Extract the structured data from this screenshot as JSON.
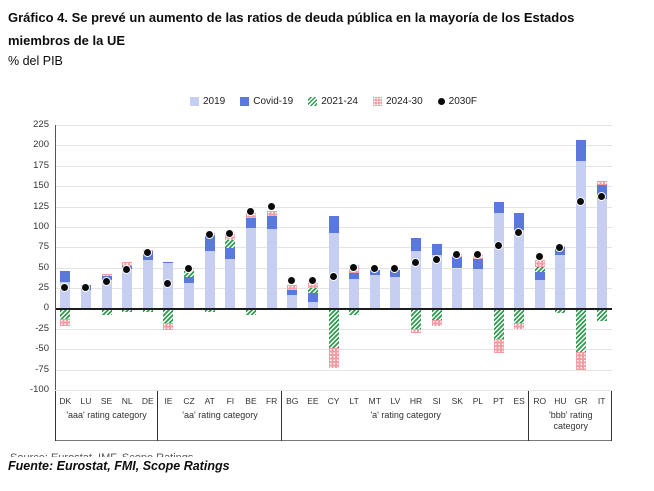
{
  "title_line1": "Gráfico 4. Se prevé un aumento de las ratios de deuda pública en la mayoría de los Estados",
  "title_line2": "miembros de la UE",
  "subtitle": "% del PIB",
  "footer": {
    "clipped_source_line": "Source: Eurostat, IMF, Scope Ratings",
    "fuente": "Fuente: Eurostat, FMI, Scope Ratings"
  },
  "colors": {
    "bar_2019": "#c6cff1",
    "bar_covid": "#5b79dd",
    "hatch_green": "#2f9e4f",
    "hatch_pink": "#f59ba3",
    "dot": "#0a0a0a",
    "gridline": "#e4e4e4",
    "zero_line": "#1c1c1c"
  },
  "chart_data": {
    "type": "bar",
    "stacked": true,
    "title": "Se prevé un aumento de las ratios de deuda pública en la mayoría de los Estados miembros de la UE",
    "ylabel": "% del PIB",
    "ylim": [
      -100,
      225
    ],
    "yticks": [
      225,
      200,
      175,
      150,
      125,
      100,
      75,
      50,
      25,
      0,
      -25,
      -50,
      -75,
      -100
    ],
    "grid": true,
    "legend_position": "top-center",
    "legend": [
      {
        "label": "2019",
        "style": "solid-light-blue"
      },
      {
        "label": "Covid-19",
        "style": "solid-blue"
      },
      {
        "label": "2021-24",
        "style": "green-hatch"
      },
      {
        "label": "2024-30",
        "style": "pink-dotted"
      },
      {
        "label": "2030F",
        "style": "black-dot"
      }
    ],
    "series_note": "Bars stack 2019 level + Covid-19 increase; 2021-24 and 2024-30 changes plot above zero when positive and below zero when negative; black dot marks 2030 forecast level.",
    "groups": [
      {
        "label": "'aaa' rating category",
        "countries": [
          {
            "code": "DK",
            "y2019": 33,
            "covid": 13,
            "chg_2021_24": -13,
            "chg_2024_30": -8,
            "f2030": 25
          },
          {
            "code": "LU",
            "y2019": 23,
            "covid": 6,
            "chg_2021_24": -2,
            "chg_2024_30": 0,
            "f2030": 25
          },
          {
            "code": "SE",
            "y2019": 35,
            "covid": 5,
            "chg_2021_24": -8,
            "chg_2024_30": 2,
            "f2030": 33
          },
          {
            "code": "NL",
            "y2019": 48,
            "covid": 4,
            "chg_2021_24": -4,
            "chg_2024_30": 5,
            "f2030": 47
          },
          {
            "code": "DE",
            "y2019": 59,
            "covid": 11,
            "chg_2021_24": -4,
            "chg_2024_30": 2,
            "f2030": 68
          }
        ]
      },
      {
        "label": "'aa' rating category",
        "countries": [
          {
            "code": "IE",
            "y2019": 56,
            "covid": 1,
            "chg_2021_24": -18,
            "chg_2024_30": -8,
            "f2030": 30
          },
          {
            "code": "CZ",
            "y2019": 31,
            "covid": 7,
            "chg_2021_24": 10,
            "chg_2024_30": 2,
            "f2030": 49
          },
          {
            "code": "AT",
            "y2019": 71,
            "covid": 19,
            "chg_2021_24": -4,
            "chg_2024_30": 3,
            "f2030": 90
          },
          {
            "code": "FI",
            "y2019": 61,
            "covid": 13,
            "chg_2021_24": 10,
            "chg_2024_30": 7,
            "f2030": 91
          },
          {
            "code": "BE",
            "y2019": 99,
            "covid": 12,
            "chg_2021_24": -8,
            "chg_2024_30": 6,
            "f2030": 118
          },
          {
            "code": "FR",
            "y2019": 98,
            "covid": 15,
            "chg_2021_24": -2,
            "chg_2024_30": 6,
            "f2030": 124
          }
        ]
      },
      {
        "label": "'a' rating category",
        "countries": [
          {
            "code": "BG",
            "y2019": 17,
            "covid": 6,
            "chg_2021_24": 0,
            "chg_2024_30": 6,
            "f2030": 34
          },
          {
            "code": "EE",
            "y2019": 8,
            "covid": 11,
            "chg_2021_24": 6,
            "chg_2024_30": 6,
            "f2030": 34
          },
          {
            "code": "CY",
            "y2019": 93,
            "covid": 20,
            "chg_2021_24": -48,
            "chg_2024_30": -25,
            "f2030": 39
          },
          {
            "code": "LT",
            "y2019": 36,
            "covid": 8,
            "chg_2021_24": -8,
            "chg_2024_30": 9,
            "f2030": 50
          },
          {
            "code": "MT",
            "y2019": 41,
            "covid": 6,
            "chg_2021_24": -2,
            "chg_2024_30": 0,
            "f2030": 48
          },
          {
            "code": "LV",
            "y2019": 38,
            "covid": 9,
            "chg_2021_24": -2,
            "chg_2024_30": 0,
            "f2030": 49
          },
          {
            "code": "HR",
            "y2019": 71,
            "covid": 16,
            "chg_2021_24": -25,
            "chg_2024_30": -5,
            "f2030": 56
          },
          {
            "code": "SI",
            "y2019": 66,
            "covid": 13,
            "chg_2021_24": -14,
            "chg_2024_30": -7,
            "f2030": 59
          },
          {
            "code": "SK",
            "y2019": 49,
            "covid": 14,
            "chg_2021_24": -2,
            "chg_2024_30": 4,
            "f2030": 66
          },
          {
            "code": "PL",
            "y2019": 48,
            "covid": 13,
            "chg_2021_24": -2,
            "chg_2024_30": 5,
            "f2030": 66
          },
          {
            "code": "PT",
            "y2019": 117,
            "covid": 14,
            "chg_2021_24": -37,
            "chg_2024_30": -18,
            "f2030": 76
          },
          {
            "code": "ES",
            "y2019": 96,
            "covid": 21,
            "chg_2021_24": -18,
            "chg_2024_30": -7,
            "f2030": 93
          }
        ]
      },
      {
        "label": "'bbb' rating category",
        "countries": [
          {
            "code": "RO",
            "y2019": 35,
            "covid": 10,
            "chg_2021_24": 6,
            "chg_2024_30": 9,
            "f2030": 63
          },
          {
            "code": "HU",
            "y2019": 66,
            "covid": 9,
            "chg_2021_24": -5,
            "chg_2024_30": 1,
            "f2030": 74
          },
          {
            "code": "GR",
            "y2019": 181,
            "covid": 26,
            "chg_2021_24": -53,
            "chg_2024_30": -23,
            "f2030": 130
          },
          {
            "code": "IT",
            "y2019": 134,
            "covid": 18,
            "chg_2021_24": -16,
            "chg_2024_30": 4,
            "f2030": 137
          }
        ]
      }
    ]
  }
}
